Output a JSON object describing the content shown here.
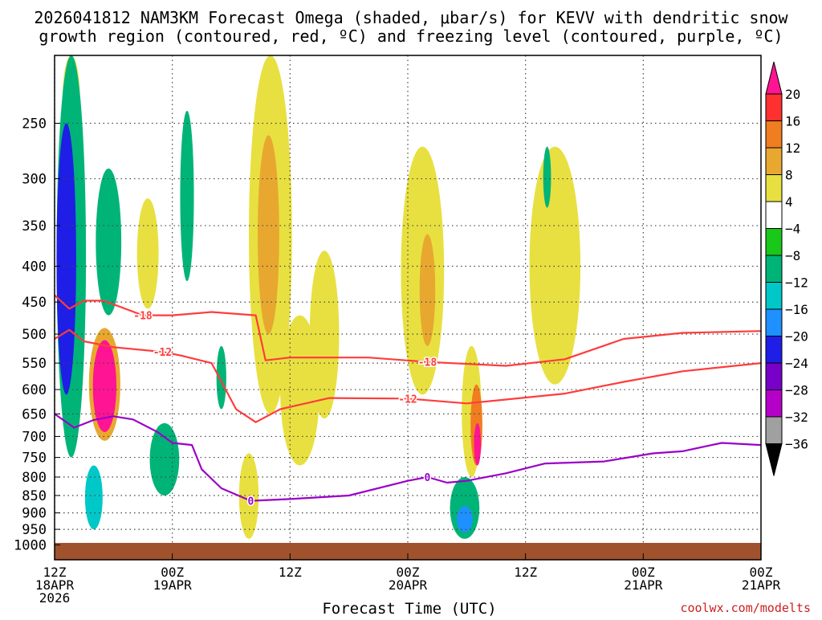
{
  "chart_data": {
    "type": "heatmap",
    "title_line1": "2026041812 NAM3KM Forecast Omega (shaded, μbar/s) for KEVV with dendritic snow",
    "title_line2": "growth region (contoured, red, ºC) and freezing level (contoured, purple, ºC)",
    "xlabel": "Forecast Time (UTC)",
    "credit": "coolwx.com/modelts",
    "x_range_hours": [
      0,
      72
    ],
    "y_range_hpa": [
      200,
      1050
    ],
    "y_ticks": [
      250,
      300,
      350,
      400,
      450,
      500,
      550,
      600,
      650,
      700,
      750,
      800,
      850,
      900,
      950,
      1000
    ],
    "x_ticks": [
      {
        "hour": 0,
        "line1": "12Z",
        "line2": "18APR",
        "line3": "2026"
      },
      {
        "hour": 12,
        "line1": "00Z",
        "line2": "19APR",
        "line3": ""
      },
      {
        "hour": 24,
        "line1": "12Z",
        "line2": "",
        "line3": ""
      },
      {
        "hour": 36,
        "line1": "00Z",
        "line2": "20APR",
        "line3": ""
      },
      {
        "hour": 48,
        "line1": "12Z",
        "line2": "",
        "line3": ""
      },
      {
        "hour": 60,
        "line1": "00Z",
        "line2": "21APR",
        "line3": ""
      }
    ],
    "colorbar": {
      "labels": [
        "20",
        "16",
        "12",
        "8",
        "4",
        "−4",
        "−8",
        "−12",
        "−16",
        "−20",
        "−24",
        "−28",
        "−32",
        "−36"
      ],
      "colors": [
        "#ff1493",
        "#ff3030",
        "#f07d20",
        "#e8a830",
        "#e8e040",
        "#ffffff",
        "#19c819",
        "#00b478",
        "#00c8c8",
        "#1e90ff",
        "#1e1ee6",
        "#7800c8",
        "#b400c8",
        "#a0a0a0",
        "#000000"
      ]
    },
    "series": [
      {
        "name": "DGZ -18C",
        "color": "#ff3c3c",
        "label": "-18",
        "points": [
          [
            0,
            440
          ],
          [
            1.5,
            460
          ],
          [
            3,
            448
          ],
          [
            5,
            448
          ],
          [
            9,
            470
          ],
          [
            12,
            470
          ],
          [
            16,
            465
          ],
          [
            20.5,
            470
          ],
          [
            21.5,
            545
          ],
          [
            24,
            540
          ],
          [
            32,
            540
          ],
          [
            38,
            548
          ],
          [
            46,
            555
          ],
          [
            52,
            543
          ],
          [
            58,
            508
          ],
          [
            64,
            498
          ],
          [
            72,
            495
          ]
        ]
      },
      {
        "name": "DGZ -12C",
        "color": "#ff3c3c",
        "label": "-12",
        "points": [
          [
            0,
            508
          ],
          [
            1.5,
            493
          ],
          [
            3,
            512
          ],
          [
            6,
            522
          ],
          [
            11,
            530
          ],
          [
            13,
            537
          ],
          [
            16,
            550
          ],
          [
            18.5,
            640
          ],
          [
            20.5,
            668
          ],
          [
            23,
            640
          ],
          [
            28,
            617
          ],
          [
            36,
            618
          ],
          [
            42,
            628
          ],
          [
            46,
            620
          ],
          [
            52,
            608
          ],
          [
            58,
            585
          ],
          [
            64,
            565
          ],
          [
            72,
            550
          ]
        ]
      },
      {
        "name": "Freezing level 0C",
        "color": "#9b00c8",
        "label": "0",
        "points": [
          [
            0,
            650
          ],
          [
            2,
            680
          ],
          [
            4,
            663
          ],
          [
            6,
            655
          ],
          [
            8,
            662
          ],
          [
            10.5,
            690
          ],
          [
            12,
            715
          ],
          [
            14,
            720
          ],
          [
            15,
            780
          ],
          [
            17,
            830
          ],
          [
            20,
            865
          ],
          [
            24,
            860
          ],
          [
            30,
            850
          ],
          [
            36,
            810
          ],
          [
            38,
            800
          ],
          [
            40,
            815
          ],
          [
            42,
            810
          ],
          [
            46,
            790
          ],
          [
            50,
            765
          ],
          [
            56,
            760
          ],
          [
            61,
            740
          ],
          [
            64,
            735
          ],
          [
            68,
            715
          ],
          [
            72,
            720
          ]
        ]
      }
    ],
    "omega_cells": [
      {
        "t": 1.7,
        "p": 210,
        "rx": 0.9,
        "ry": 60,
        "value": 5
      },
      {
        "t": 1.7,
        "p": 470,
        "rx": 1.5,
        "ry": 280,
        "value": -8
      },
      {
        "t": 1.2,
        "p": 430,
        "rx": 1.0,
        "ry": 180,
        "value": -20
      },
      {
        "t": 5.5,
        "p": 380,
        "rx": 1.3,
        "ry": 90,
        "value": -8
      },
      {
        "t": 4.0,
        "p": 860,
        "rx": 0.9,
        "ry": 90,
        "value": -12
      },
      {
        "t": 5.1,
        "p": 600,
        "rx": 1.6,
        "ry": 110,
        "value": 8
      },
      {
        "t": 5.1,
        "p": 600,
        "rx": 1.2,
        "ry": 90,
        "value": 20
      },
      {
        "t": 9.5,
        "p": 390,
        "rx": 1.1,
        "ry": 70,
        "value": 5
      },
      {
        "t": 13.5,
        "p": 330,
        "rx": 0.7,
        "ry": 90,
        "value": -8
      },
      {
        "t": 11.2,
        "p": 760,
        "rx": 1.5,
        "ry": 90,
        "value": -8
      },
      {
        "t": 17.0,
        "p": 580,
        "rx": 0.5,
        "ry": 60,
        "value": -8
      },
      {
        "t": 22.0,
        "p": 420,
        "rx": 2.2,
        "ry": 230,
        "value": 5
      },
      {
        "t": 21.8,
        "p": 380,
        "rx": 1.1,
        "ry": 120,
        "value": 10
      },
      {
        "t": 25.0,
        "p": 620,
        "rx": 2.0,
        "ry": 150,
        "value": 5
      },
      {
        "t": 27.5,
        "p": 520,
        "rx": 1.5,
        "ry": 140,
        "value": 5
      },
      {
        "t": 19.8,
        "p": 860,
        "rx": 1.0,
        "ry": 120,
        "value": 5
      },
      {
        "t": 37.5,
        "p": 440,
        "rx": 2.2,
        "ry": 170,
        "value": 5
      },
      {
        "t": 38.0,
        "p": 440,
        "rx": 0.8,
        "ry": 80,
        "value": 8
      },
      {
        "t": 41.8,
        "p": 890,
        "rx": 1.5,
        "ry": 90,
        "value": -8
      },
      {
        "t": 41.8,
        "p": 920,
        "rx": 0.8,
        "ry": 40,
        "value": -16
      },
      {
        "t": 42.5,
        "p": 660,
        "rx": 1.0,
        "ry": 140,
        "value": 5
      },
      {
        "t": 43.0,
        "p": 680,
        "rx": 0.6,
        "ry": 90,
        "value": 12
      },
      {
        "t": 43.1,
        "p": 720,
        "rx": 0.35,
        "ry": 50,
        "value": 20
      },
      {
        "t": 51.0,
        "p": 430,
        "rx": 2.6,
        "ry": 160,
        "value": 5
      },
      {
        "t": 50.2,
        "p": 300,
        "rx": 0.4,
        "ry": 30,
        "value": -8
      }
    ]
  }
}
